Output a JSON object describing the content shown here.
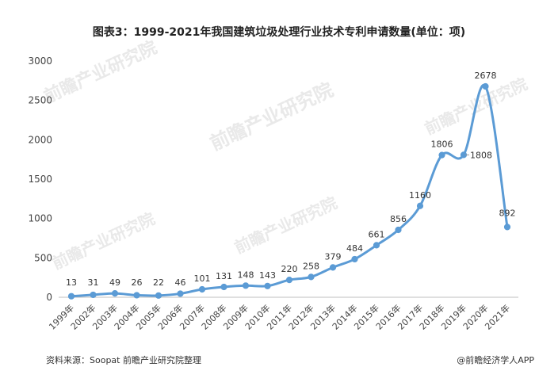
{
  "page_title": "图表3：1999-2021年我国建筑垃圾处理行业技术专利申请数量(单位：项)",
  "footer": {
    "source": "资料来源：Soopat 前瞻产业研究院整理",
    "credit": "@前瞻经济学人APP"
  },
  "watermark": "前瞻产业研究院",
  "colors": {
    "line": "#5b9bd5",
    "axis": "#bfbfbf",
    "text": "#333333"
  },
  "chart_data": {
    "type": "line",
    "title": "1999-2021年我国建筑垃圾处理行业技术专利申请数量(单位：项)",
    "xlabel": "",
    "ylabel": "",
    "ylim": [
      0,
      3000
    ],
    "yticks": [
      0,
      500,
      1000,
      1500,
      2000,
      2500,
      3000
    ],
    "grid": false,
    "legend": "none",
    "categories": [
      "1999年",
      "2002年",
      "2003年",
      "2004年",
      "2005年",
      "2006年",
      "2007年",
      "2008年",
      "2009年",
      "2010年",
      "2011年",
      "2012年",
      "2013年",
      "2014年",
      "2015年",
      "2016年",
      "2017年",
      "2018年",
      "2019年",
      "2020年",
      "2021年"
    ],
    "series": [
      {
        "name": "专利申请数量",
        "values": [
          13,
          31,
          49,
          26,
          22,
          46,
          101,
          131,
          148,
          143,
          220,
          258,
          379,
          484,
          661,
          856,
          1160,
          1806,
          1808,
          2678,
          892
        ]
      }
    ]
  }
}
